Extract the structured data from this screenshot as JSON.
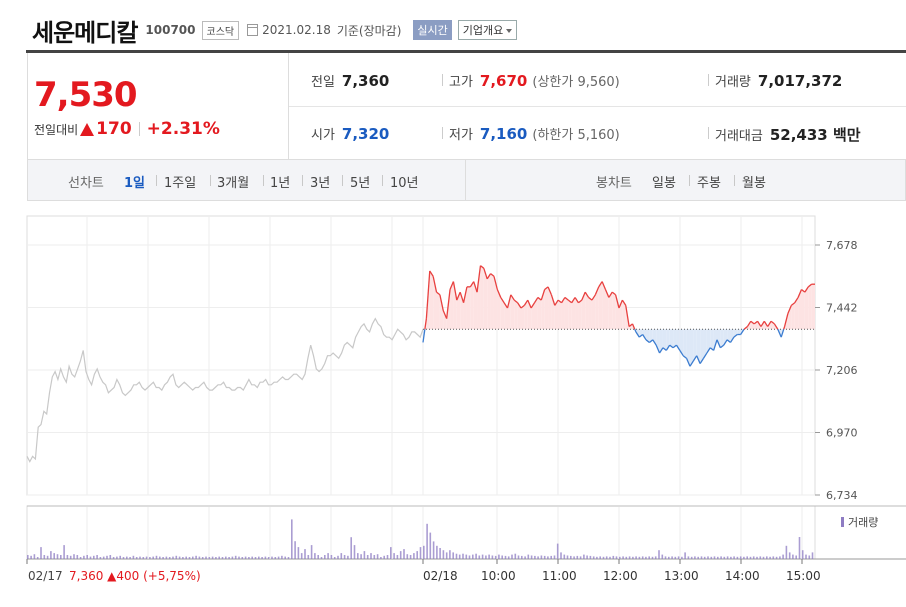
{
  "header": {
    "company_name": "세운메디칼",
    "code": "100700",
    "market": "코스닥",
    "date": "2021.02.18",
    "basis": "기준(장마감)",
    "live_button": "실시간",
    "company_info_button": "기업개요"
  },
  "price": {
    "current": "7,530",
    "compare_label": "전일대비",
    "change": "170",
    "change_pct": "+2.31%"
  },
  "stats": {
    "prev_close_label": "전일",
    "prev_close": "7,360",
    "high_label": "고가",
    "high": "7,670",
    "upper_limit": "(상한가 9,560)",
    "volume_label": "거래량",
    "volume": "7,017,372",
    "open_label": "시가",
    "open": "7,320",
    "low_label": "저가",
    "low": "7,160",
    "lower_limit": "(하한가 5,160)",
    "amount_label": "거래대금",
    "amount": "52,433 백만"
  },
  "toolbar": {
    "line_chart_label": "선차트",
    "periods": [
      "1일",
      "1주일",
      "3개월",
      "1년",
      "3년",
      "5년",
      "10년"
    ],
    "active_period": "1일",
    "candle_chart_label": "봉차트",
    "candles": [
      "일봉",
      "주봉",
      "월봉"
    ]
  },
  "chart_labels": {
    "prev_day_date": "02/17",
    "prev_day_summary": "7,360 ▲400 (+5,75%)",
    "volume_legend": "거래량"
  },
  "colors": {
    "up": "#e3191f",
    "down": "#1a5bc0",
    "line_up": "#e8403f",
    "line_down": "#3b7cd0",
    "prev_day_line": "#c8c8c8",
    "volume_bar": "#8e7cc3"
  },
  "chart_data": {
    "type": "line",
    "title": "",
    "y_ticks": [
      "7,678",
      "7,442",
      "7,206",
      "6,970",
      "6,734"
    ],
    "y_tick_values": [
      7678,
      7442,
      7206,
      6970,
      6734
    ],
    "ylim": [
      6734,
      7678
    ],
    "x_ticks": [
      "02/18",
      "10:00",
      "11:00",
      "12:00",
      "13:00",
      "14:00",
      "15:00"
    ],
    "reference_value": 7360,
    "series": [
      {
        "name": "02/17",
        "values": [
          6880,
          6860,
          6880,
          6870,
          6990,
          7000,
          7050,
          7040,
          7120,
          7180,
          7200,
          7170,
          7210,
          7180,
          7160,
          7220,
          7190,
          7180,
          7210,
          7240,
          7280,
          7200,
          7170,
          7150,
          7190,
          7210,
          7180,
          7160,
          7150,
          7120,
          7130,
          7140,
          7170,
          7150,
          7120,
          7110,
          7120,
          7130,
          7150,
          7150,
          7160,
          7140,
          7130,
          7140,
          7150,
          7160,
          7140,
          7140,
          7130,
          7150,
          7160,
          7180,
          7190,
          7150,
          7140,
          7150,
          7160,
          7150,
          7140,
          7130,
          7140,
          7140,
          7150,
          7160,
          7140,
          7130,
          7130,
          7140,
          7150,
          7150,
          7160,
          7140,
          7140,
          7130,
          7130,
          7140,
          7140,
          7130,
          7150,
          7170,
          7150,
          7150,
          7140,
          7160,
          7160,
          7170,
          7150,
          7150,
          7160,
          7160,
          7170,
          7180,
          7170,
          7170,
          7180,
          7190,
          7190,
          7180,
          7170,
          7190,
          7250,
          7300,
          7260,
          7210,
          7200,
          7210,
          7230,
          7260,
          7260,
          7270,
          7260,
          7250,
          7270,
          7300,
          7310,
          7300,
          7290,
          7330,
          7350,
          7370,
          7380,
          7360,
          7350,
          7380,
          7400,
          7380,
          7370,
          7340,
          7330,
          7330,
          7320,
          7340,
          7360,
          7350,
          7340,
          7320,
          7330,
          7350,
          7350,
          7340,
          7330,
          7360
        ]
      },
      {
        "name": "02/18",
        "values": [
          7310,
          7400,
          7580,
          7560,
          7500,
          7490,
          7430,
          7400,
          7510,
          7540,
          7470,
          7500,
          7460,
          7520,
          7520,
          7540,
          7500,
          7600,
          7590,
          7550,
          7570,
          7560,
          7510,
          7480,
          7460,
          7440,
          7490,
          7470,
          7460,
          7440,
          7450,
          7470,
          7440,
          7460,
          7480,
          7470,
          7510,
          7520,
          7490,
          7450,
          7470,
          7460,
          7480,
          7470,
          7460,
          7480,
          7460,
          7470,
          7500,
          7480,
          7470,
          7490,
          7520,
          7540,
          7510,
          7480,
          7500,
          7490,
          7440,
          7470,
          7450,
          7370,
          7380,
          7350,
          7330,
          7340,
          7320,
          7310,
          7320,
          7300,
          7270,
          7290,
          7280,
          7300,
          7290,
          7300,
          7280,
          7260,
          7250,
          7220,
          7240,
          7260,
          7230,
          7250,
          7270,
          7290,
          7280,
          7320,
          7290,
          7300,
          7320,
          7310,
          7330,
          7340,
          7340,
          7360,
          7370,
          7390,
          7380,
          7390,
          7370,
          7390,
          7370,
          7390,
          7380,
          7360,
          7330,
          7370,
          7420,
          7450,
          7460,
          7480,
          7510,
          7500,
          7520,
          7530,
          7530
        ]
      }
    ],
    "volume_relative": [
      0.1,
      0.08,
      0.12,
      0.05,
      0.3,
      0.1,
      0.08,
      0.2,
      0.15,
      0.12,
      0.1,
      0.35,
      0.1,
      0.08,
      0.12,
      0.1,
      0.05,
      0.08,
      0.1,
      0.06,
      0.08,
      0.1,
      0.05,
      0.06,
      0.08,
      0.1,
      0.05,
      0.06,
      0.08,
      0.05,
      0.06,
      0.05,
      0.08,
      0.05,
      0.06,
      0.05,
      0.06,
      0.05,
      0.06,
      0.08,
      0.06,
      0.05,
      0.06,
      0.05,
      0.06,
      0.08,
      0.06,
      0.05,
      0.06,
      0.05,
      0.06,
      0.08,
      0.06,
      0.05,
      0.06,
      0.05,
      0.06,
      0.05,
      0.06,
      0.05,
      0.06,
      0.05,
      0.06,
      0.08,
      0.06,
      0.05,
      0.06,
      0.05,
      0.06,
      0.05,
      0.06,
      0.05,
      0.06,
      0.05,
      0.06,
      0.05,
      0.06,
      0.08,
      0.06,
      0.05,
      1.0,
      0.45,
      0.3,
      0.15,
      0.25,
      0.1,
      0.35,
      0.15,
      0.1,
      0.05,
      0.1,
      0.15,
      0.1,
      0.05,
      0.08,
      0.15,
      0.1,
      0.08,
      0.55,
      0.35,
      0.15,
      0.12,
      0.2,
      0.1,
      0.15,
      0.1,
      0.12,
      0.05,
      0.08,
      0.1,
      0.3,
      0.15,
      0.1,
      0.2,
      0.25,
      0.12,
      0.1,
      0.15,
      0.2,
      0.3
    ],
    "volume_relative_today": [
      0.3,
      0.8,
      0.6,
      0.4,
      0.3,
      0.25,
      0.2,
      0.15,
      0.2,
      0.15,
      0.12,
      0.1,
      0.12,
      0.1,
      0.08,
      0.1,
      0.12,
      0.08,
      0.1,
      0.08,
      0.1,
      0.08,
      0.07,
      0.1,
      0.08,
      0.07,
      0.06,
      0.1,
      0.12,
      0.08,
      0.07,
      0.06,
      0.1,
      0.08,
      0.07,
      0.06,
      0.08,
      0.07,
      0.06,
      0.07,
      0.08,
      0.35,
      0.15,
      0.1,
      0.08,
      0.07,
      0.06,
      0.07,
      0.06,
      0.1,
      0.08,
      0.07,
      0.06,
      0.05,
      0.06,
      0.05,
      0.06,
      0.05,
      0.07,
      0.06,
      0.05,
      0.06,
      0.05,
      0.06,
      0.05,
      0.06,
      0.05,
      0.06,
      0.05,
      0.06,
      0.05,
      0.06,
      0.2,
      0.1,
      0.06,
      0.05,
      0.06,
      0.05,
      0.06,
      0.05,
      0.15,
      0.06,
      0.05,
      0.06,
      0.05,
      0.06,
      0.05,
      0.06,
      0.05,
      0.06,
      0.05,
      0.06,
      0.05,
      0.06,
      0.05,
      0.06,
      0.05,
      0.06,
      0.05,
      0.06,
      0.05,
      0.06,
      0.05,
      0.06,
      0.05,
      0.06,
      0.05,
      0.06,
      0.05,
      0.06,
      0.1,
      0.3,
      0.15,
      0.1,
      0.08,
      0.5,
      0.2,
      0.1,
      0.08,
      0.15
    ]
  }
}
